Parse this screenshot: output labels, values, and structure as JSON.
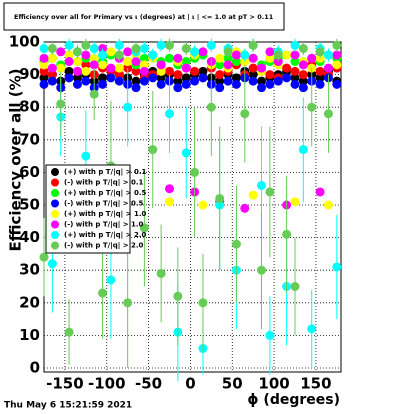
{
  "chart_data": {
    "type": "scatter",
    "title": "Efficiency over all for Primary vs ι (degrees) at | ι | <= 1.0 at pT > 0.11",
    "x_label": "ϕ (degrees)",
    "y_label": "Efficiency over all (%)",
    "footer": "Thu May  6 15:21:59 2021",
    "xlim": [
      -175,
      180
    ],
    "ylim": [
      0,
      100
    ],
    "xticks": [
      -150,
      -100,
      -50,
      0,
      50,
      100,
      150
    ],
    "yticks": [
      0,
      10,
      20,
      30,
      40,
      50,
      60,
      70,
      80,
      90,
      100
    ],
    "grid": true,
    "legend_position": "left",
    "x": [
      -175,
      -165,
      -155,
      -145,
      -135,
      -125,
      -115,
      -105,
      -95,
      -85,
      -75,
      -65,
      -55,
      -45,
      -35,
      -25,
      -15,
      -5,
      5,
      15,
      25,
      35,
      45,
      55,
      65,
      75,
      85,
      95,
      105,
      115,
      125,
      135,
      145,
      155,
      165,
      175
    ],
    "series": [
      {
        "name": "(+) with p T/|q| > 0.1",
        "color": "#000000",
        "values": [
          89,
          90,
          88,
          91,
          89,
          90,
          88,
          89,
          91,
          90,
          89,
          88,
          90,
          91,
          89,
          90,
          88,
          89,
          90,
          91,
          89,
          88,
          90,
          89,
          91,
          90,
          88,
          89,
          90,
          91,
          89,
          88,
          90,
          89,
          91,
          88
        ]
      },
      {
        "name": "(-) with p T/|q| > 0.1",
        "color": "#ff0000",
        "values": [
          91,
          90,
          92,
          89,
          91,
          93,
          90,
          92,
          91,
          90,
          92,
          91,
          89,
          90,
          93,
          91,
          90,
          92,
          91,
          89,
          92,
          90,
          91,
          93,
          90,
          92,
          91,
          90,
          89,
          92,
          91,
          90,
          93,
          91,
          90,
          92
        ]
      },
      {
        "name": "(+) with p T/|q| > 0.5",
        "color": "#00ff00",
        "values": [
          94,
          95,
          93,
          96,
          94,
          95,
          93,
          94,
          96,
          95,
          94,
          93,
          95,
          96,
          94,
          95,
          93,
          94,
          95,
          96,
          94,
          93,
          95,
          94,
          96,
          95,
          93,
          94,
          95,
          96,
          94,
          93,
          95,
          94,
          96,
          95
        ]
      },
      {
        "name": "(-) with p T/|q| > 0.5",
        "color": "#0000ff",
        "values": [
          87,
          88,
          86,
          89,
          87,
          88,
          86,
          87,
          89,
          88,
          87,
          86,
          88,
          89,
          87,
          88,
          86,
          87,
          88,
          89,
          87,
          86,
          88,
          87,
          89,
          88,
          86,
          87,
          88,
          89,
          87,
          86,
          88,
          87,
          89,
          87
        ]
      },
      {
        "name": "(+) with p T/|q| > 1.0",
        "color": "#ffff00",
        "values": [
          93,
          95,
          92,
          96,
          94,
          91,
          95,
          93,
          97,
          92,
          94,
          96,
          93,
          95,
          91,
          51,
          94,
          92,
          96,
          50,
          93,
          95,
          92,
          97,
          94,
          53,
          91,
          95,
          93,
          96,
          51,
          94,
          92,
          95,
          50,
          93
        ]
      },
      {
        "name": "(-) with p T/|q| > 1.0",
        "color": "#ff00ff",
        "values": [
          95,
          92,
          97,
          94,
          91,
          96,
          93,
          98,
          92,
          95,
          97,
          94,
          91,
          96,
          93,
          55,
          95,
          92,
          54,
          97,
          94,
          51,
          93,
          96,
          49,
          95,
          92,
          97,
          94,
          50,
          96,
          93,
          95,
          54,
          92,
          96
        ]
      },
      {
        "name": "(+) with p T/|q| > 2.0",
        "color": "#00ffff",
        "values": [
          98,
          32,
          77,
          99,
          97,
          65,
          98,
          96,
          27,
          99,
          80,
          97,
          98,
          96,
          99,
          78,
          11,
          66,
          97,
          6,
          99,
          50,
          98,
          30,
          96,
          99,
          56,
          10,
          97,
          25,
          99,
          67,
          12,
          98,
          96,
          31
        ],
        "errors": [
          2,
          15,
          12,
          2,
          2,
          14,
          2,
          2,
          18,
          2,
          12,
          2,
          2,
          2,
          2,
          12,
          15,
          14,
          2,
          8,
          2,
          20,
          2,
          18,
          2,
          2,
          18,
          12,
          2,
          18,
          2,
          16,
          12,
          2,
          2,
          16
        ]
      },
      {
        "name": "(-) with p T/|q| > 2.0",
        "color": "#66cc55",
        "values": [
          34,
          98,
          81,
          11,
          97,
          99,
          84,
          23,
          62,
          96,
          20,
          98,
          43,
          67,
          29,
          99,
          22,
          98,
          60,
          20,
          80,
          52,
          97,
          38,
          78,
          99,
          30,
          54,
          96,
          41,
          25,
          98,
          80,
          97,
          78,
          99
        ],
        "errors": [
          12,
          2,
          10,
          10,
          2,
          2,
          8,
          14,
          20,
          2,
          20,
          2,
          18,
          18,
          15,
          2,
          15,
          2,
          20,
          15,
          15,
          22,
          2,
          18,
          15,
          2,
          18,
          20,
          2,
          18,
          15,
          2,
          12,
          2,
          12,
          2
        ]
      }
    ]
  }
}
